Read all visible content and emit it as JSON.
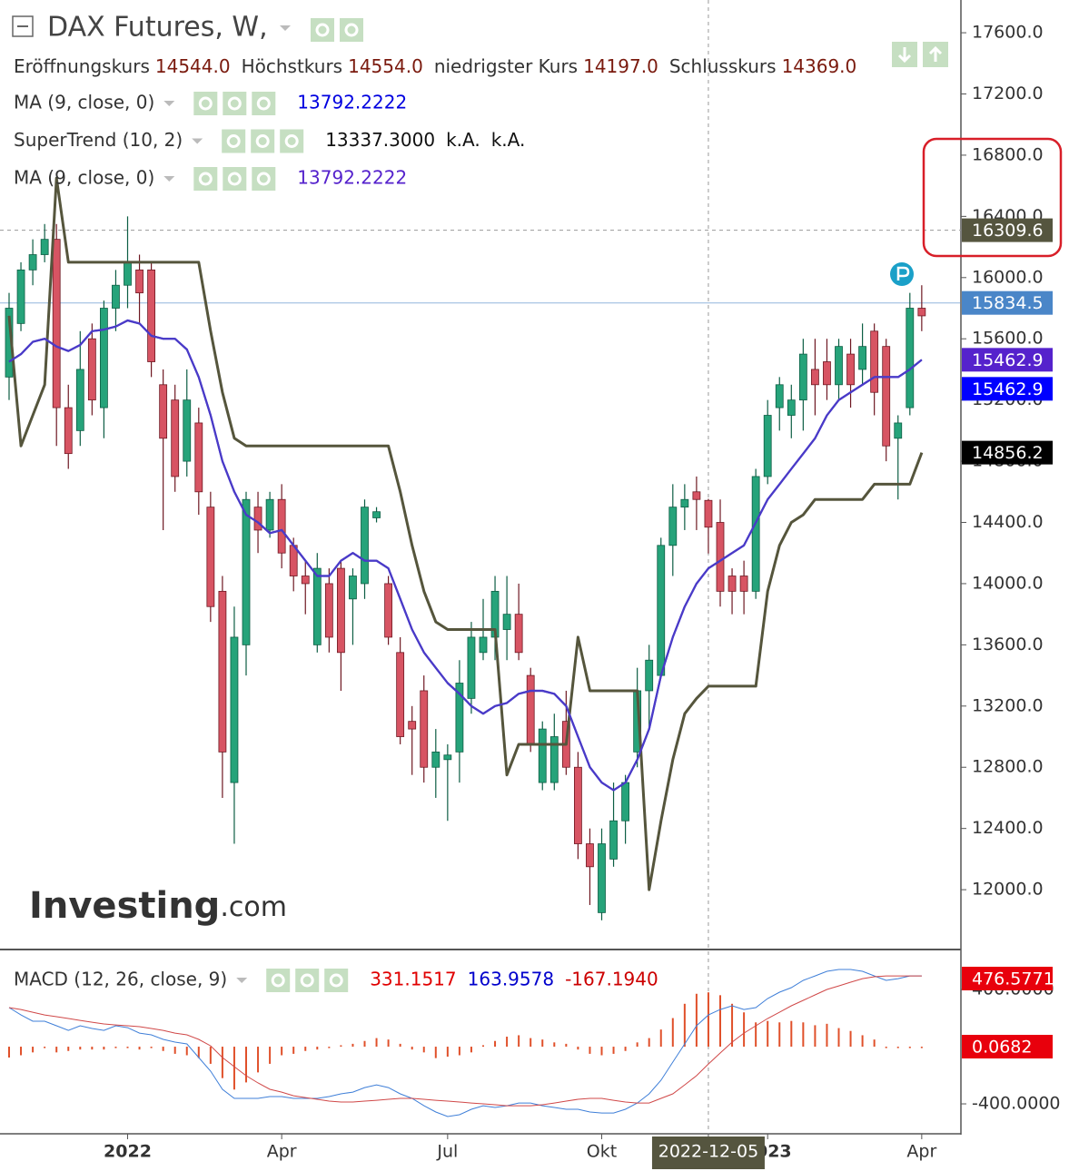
{
  "chart_data": [
    {
      "type": "candlestick",
      "title": "DAX Futures, W,",
      "ohlc_readout": [
        [
          "Eröffnungskurs",
          "14544.0"
        ],
        [
          "Höchstkurs",
          "14554.0"
        ],
        [
          "niedrigster Kurs",
          "14197.0"
        ],
        [
          "Schlusskurs",
          "14369.0"
        ]
      ],
      "watermark": [
        "Investing",
        ".com"
      ],
      "categories": [
        null,
        null,
        null,
        null,
        null,
        null,
        null,
        null,
        null,
        null,
        "2022",
        null,
        null,
        null,
        null,
        null,
        null,
        null,
        null,
        null,
        null,
        null,
        null,
        "Apr",
        null,
        null,
        null,
        null,
        null,
        null,
        null,
        null,
        null,
        null,
        null,
        null,
        null,
        "Jul",
        null,
        null,
        null,
        null,
        null,
        null,
        null,
        null,
        null,
        null,
        null,
        null,
        "Okt",
        null,
        null,
        null,
        null,
        null,
        null,
        null,
        null,
        "2022-12-05",
        null,
        null,
        null,
        null,
        "2023",
        null,
        null,
        null,
        null,
        null,
        null,
        null,
        null,
        null,
        null,
        null,
        null,
        "Apr"
      ],
      "up_color": "#26a37a",
      "down_color": "#d75463",
      "open": [
        15350,
        15700,
        16050,
        16150,
        16250,
        15150,
        15000,
        15600,
        15150,
        15800,
        15950,
        16050,
        16050,
        15300,
        15200,
        14800,
        15050,
        14500,
        13950,
        12700,
        13600,
        14500,
        14350,
        14550,
        14250,
        14050,
        13600,
        14000,
        14100,
        13900,
        14000,
        14430,
        14000,
        13550,
        13100,
        13300,
        12800,
        12850,
        12900,
        13250,
        13550,
        13650,
        13700,
        13800,
        13400,
        12700,
        12700,
        13100,
        12800,
        12300,
        11850,
        12200,
        12450,
        12900,
        13300,
        13400,
        14250,
        14500,
        14600,
        14544,
        14400,
        14050,
        14050,
        13950,
        14700,
        15150,
        15100,
        15200,
        15400,
        15450,
        15300,
        15500,
        15400,
        15650,
        15550,
        14950,
        15150,
        15800
      ],
      "high": [
        15900,
        16100,
        16250,
        16350,
        16350,
        15300,
        15650,
        15700,
        15850,
        16050,
        16400,
        16150,
        16100,
        15400,
        15300,
        15400,
        15150,
        14600,
        14050,
        13850,
        14600,
        14600,
        14600,
        14650,
        14300,
        14150,
        14200,
        14100,
        14150,
        14100,
        14550,
        14500,
        14050,
        13650,
        13200,
        13400,
        13050,
        12950,
        13500,
        13750,
        13900,
        14050,
        14050,
        14000,
        13450,
        13100,
        13150,
        13300,
        12900,
        12400,
        12400,
        12700,
        12750,
        13450,
        13600,
        14300,
        14650,
        14650,
        14700,
        14554,
        14550,
        14100,
        14150,
        14750,
        15200,
        15350,
        15300,
        15600,
        15600,
        15600,
        15600,
        15600,
        15700,
        15700,
        15600,
        15100,
        15900,
        15950
      ],
      "low": [
        15200,
        15650,
        15950,
        16100,
        14900,
        14750,
        14900,
        15100,
        14950,
        15650,
        15800,
        15700,
        15350,
        14350,
        14600,
        14700,
        14450,
        13750,
        12600,
        12300,
        13400,
        14200,
        14300,
        14100,
        13950,
        13800,
        13550,
        13550,
        13300,
        13600,
        13900,
        14400,
        13600,
        12950,
        12750,
        12700,
        12600,
        12450,
        12700,
        13150,
        13500,
        13500,
        13500,
        13500,
        12900,
        12650,
        12650,
        12750,
        12200,
        11900,
        11800,
        12150,
        12300,
        12800,
        13050,
        13400,
        14050,
        14350,
        14350,
        14197,
        13850,
        13800,
        13800,
        13900,
        14650,
        15000,
        14950,
        15000,
        15100,
        15200,
        15200,
        15150,
        15300,
        15100,
        14800,
        14550,
        15100,
        15650
      ],
      "close": [
        15800,
        16050,
        16150,
        16250,
        15150,
        14850,
        15400,
        15200,
        15800,
        15950,
        16100,
        15900,
        15450,
        14950,
        14700,
        15200,
        14600,
        13850,
        12900,
        13650,
        14550,
        14350,
        14550,
        14200,
        14050,
        14000,
        14100,
        13650,
        13550,
        14050,
        14500,
        14470,
        13650,
        13000,
        13050,
        12800,
        12900,
        12880,
        13350,
        13650,
        13650,
        13950,
        13800,
        13550,
        12950,
        13050,
        13000,
        12800,
        12300,
        12150,
        12300,
        12450,
        12700,
        13300,
        13500,
        14250,
        14500,
        14550,
        14550,
        14369,
        13950,
        13950,
        13950,
        14700,
        15100,
        15300,
        15200,
        15500,
        15300,
        15300,
        15550,
        15300,
        15550,
        15250,
        14900,
        15050,
        15800,
        15750
      ],
      "series": [
        {
          "name": "MA (9, close, 0)",
          "color": "#3c3cc4",
          "readout": [
            "13792.2222"
          ],
          "readout_color": "#0000e0",
          "values": [
            15450,
            15500,
            15580,
            15600,
            15550,
            15520,
            15560,
            15650,
            15660,
            15680,
            15720,
            15700,
            15620,
            15600,
            15600,
            15530,
            15350,
            15100,
            14800,
            14600,
            14450,
            14400,
            14330,
            14350,
            14250,
            14150,
            14050,
            14050,
            14150,
            14200,
            14150,
            14150,
            14100,
            13900,
            13700,
            13550,
            13450,
            13350,
            13280,
            13200,
            13150,
            13200,
            13220,
            13280,
            13300,
            13300,
            13280,
            13200,
            13000,
            12800,
            12700,
            12650,
            12700,
            12850,
            13050,
            13400,
            13650,
            13850,
            14000,
            14100,
            14150,
            14200,
            14250,
            14400,
            14550,
            14650,
            14750,
            14850,
            14950,
            15100,
            15200,
            15250,
            15300,
            15350,
            15350,
            15350,
            15400,
            15462.9
          ]
        },
        {
          "name": "SuperTrend (10, 2)",
          "color": "#55553c",
          "readout": [
            "13337.3000",
            "k.A.",
            "k.A."
          ],
          "readout_color": "#111111",
          "values": [
            15750,
            14900,
            15100,
            15300,
            16650,
            16100,
            16100,
            16100,
            16100,
            16100,
            16100,
            16100,
            16100,
            16100,
            16100,
            16100,
            16100,
            15650,
            15250,
            14950,
            14900,
            14900,
            14900,
            14900,
            14900,
            14900,
            14900,
            14900,
            14900,
            14900,
            14900,
            14900,
            14900,
            14600,
            14250,
            13950,
            13750,
            13700,
            13700,
            13700,
            13700,
            13700,
            12750,
            12950,
            12950,
            12950,
            12950,
            12950,
            13650,
            13300,
            13300,
            13300,
            13300,
            13300,
            12000,
            12450,
            12850,
            13150,
            13250,
            13330,
            13330,
            13330,
            13330,
            13330,
            13950,
            14250,
            14400,
            14450,
            14550,
            14550,
            14550,
            14550,
            14550,
            14650,
            14650,
            14650,
            14650,
            14856.2
          ]
        },
        {
          "name": "MA (9, close, 0)",
          "color": "#4a3ac8",
          "readout": [
            "13792.2222"
          ],
          "readout_color": "#5522cc",
          "values": [
            15450,
            15500,
            15580,
            15600,
            15550,
            15520,
            15560,
            15650,
            15660,
            15680,
            15720,
            15700,
            15620,
            15600,
            15600,
            15530,
            15350,
            15100,
            14800,
            14600,
            14450,
            14400,
            14330,
            14350,
            14250,
            14150,
            14050,
            14050,
            14150,
            14200,
            14150,
            14150,
            14100,
            13900,
            13700,
            13550,
            13450,
            13350,
            13280,
            13200,
            13150,
            13200,
            13220,
            13280,
            13300,
            13300,
            13280,
            13200,
            13000,
            12800,
            12700,
            12650,
            12700,
            12850,
            13050,
            13400,
            13650,
            13850,
            14000,
            14100,
            14150,
            14200,
            14250,
            14400,
            14550,
            14650,
            14750,
            14850,
            14950,
            15100,
            15200,
            15250,
            15300,
            15350,
            15350,
            15350,
            15400,
            15462.9
          ]
        }
      ],
      "ylim": [
        11615,
        17814
      ],
      "yticks": [
        {
          "value": 12000,
          "label": "12000.0"
        },
        {
          "value": 12400,
          "label": "12400.0"
        },
        {
          "value": 12800,
          "label": "12800.0"
        },
        {
          "value": 13200,
          "label": "13200.0"
        },
        {
          "value": 13600,
          "label": "13600.0"
        },
        {
          "value": 14000,
          "label": "14000.0"
        },
        {
          "value": 14400,
          "label": "14400.0"
        },
        {
          "value": 14800,
          "label": "14800.0"
        },
        {
          "value": 15200,
          "label": "15200.0"
        },
        {
          "value": 15600,
          "label": "15600.0"
        },
        {
          "value": 16000,
          "label": "16000.0"
        },
        {
          "value": 16400,
          "label": "16400.0"
        },
        {
          "value": 16800,
          "label": "16800.0"
        },
        {
          "value": 17200,
          "label": "17200.0"
        },
        {
          "value": 17600,
          "label": "17600.0"
        }
      ],
      "crosshair": {
        "value": 16309.6,
        "color": "#55553f"
      },
      "price_tags": [
        {
          "value": 15834.5,
          "color": "#4a86c8",
          "line": true
        },
        {
          "value": 15462.9,
          "color": "#5522cc"
        },
        {
          "value": 15462.9,
          "color": "#0000ff"
        },
        {
          "value": 14856.2,
          "color": "#000000"
        }
      ]
    },
    {
      "type": "macd",
      "title": "MACD (12, 26, close, 9)",
      "readout": [
        {
          "text": "331.1517",
          "color": "#e00000"
        },
        {
          "text": "163.9578",
          "color": "#0000cc"
        },
        {
          "text": "-167.1940",
          "color": "#cc0000"
        }
      ],
      "lines": [
        {
          "color": "#3f7fd8",
          "values": [
            273,
            222,
            178,
            178,
            146,
            114,
            146,
            127,
            114,
            146,
            133,
            95,
            83,
            51,
            32,
            19,
            -76,
            -171,
            -298,
            -362,
            -362,
            -362,
            -349,
            -349,
            -362,
            -362,
            -362,
            -349,
            -330,
            -318,
            -286,
            -267,
            -286,
            -330,
            -362,
            -413,
            -457,
            -489,
            -476,
            -438,
            -413,
            -425,
            -413,
            -394,
            -394,
            -413,
            -425,
            -438,
            -438,
            -457,
            -464,
            -464,
            -438,
            -394,
            -330,
            -235,
            -108,
            19,
            146,
            222,
            260,
            286,
            260,
            273,
            337,
            381,
            413,
            464,
            495,
            527,
            540,
            540,
            527,
            495,
            464,
            476,
            495,
            495
          ]
        },
        {
          "color": "#d04848",
          "values": [
            273,
            260,
            241,
            222,
            210,
            197,
            184,
            171,
            159,
            152,
            146,
            140,
            127,
            114,
            95,
            83,
            51,
            6,
            -76,
            -140,
            -203,
            -254,
            -298,
            -318,
            -343,
            -356,
            -368,
            -381,
            -387,
            -387,
            -381,
            -375,
            -368,
            -362,
            -362,
            -368,
            -375,
            -381,
            -387,
            -394,
            -400,
            -406,
            -413,
            -413,
            -413,
            -406,
            -394,
            -381,
            -368,
            -362,
            -362,
            -375,
            -387,
            -394,
            -394,
            -362,
            -330,
            -267,
            -203,
            -121,
            -44,
            32,
            95,
            146,
            197,
            241,
            286,
            324,
            362,
            400,
            425,
            451,
            476,
            489,
            495,
            495,
            495,
            495
          ]
        }
      ],
      "histogram": {
        "color": "#e0502a",
        "values": [
          -76,
          -60,
          -40,
          -10,
          -40,
          -30,
          -20,
          -20,
          -20,
          -10,
          -10,
          -20,
          -10,
          -30,
          -50,
          -60,
          -80,
          -120,
          -220,
          -300,
          -250,
          -180,
          -120,
          -60,
          -50,
          -30,
          -20,
          -10,
          10,
          20,
          40,
          60,
          50,
          20,
          -20,
          -40,
          -80,
          -70,
          -60,
          -40,
          10,
          40,
          70,
          80,
          60,
          50,
          30,
          20,
          -20,
          -50,
          -60,
          -50,
          -30,
          30,
          60,
          120,
          200,
          300,
          370,
          380,
          360,
          300,
          240,
          170,
          180,
          170,
          180,
          170,
          150,
          160,
          130,
          110,
          80,
          50,
          -10,
          -10,
          -10,
          -10
        ]
      },
      "ylim": [
        -603,
        667
      ],
      "yticks": [
        {
          "value": -400,
          "label": "-400.0000"
        },
        {
          "value": 400,
          "label": "400.0000"
        }
      ],
      "price_tags": [
        {
          "value": 476.5771,
          "color": "#e8000c"
        },
        {
          "value": 0.0682,
          "color": "#e8000c"
        }
      ]
    }
  ]
}
